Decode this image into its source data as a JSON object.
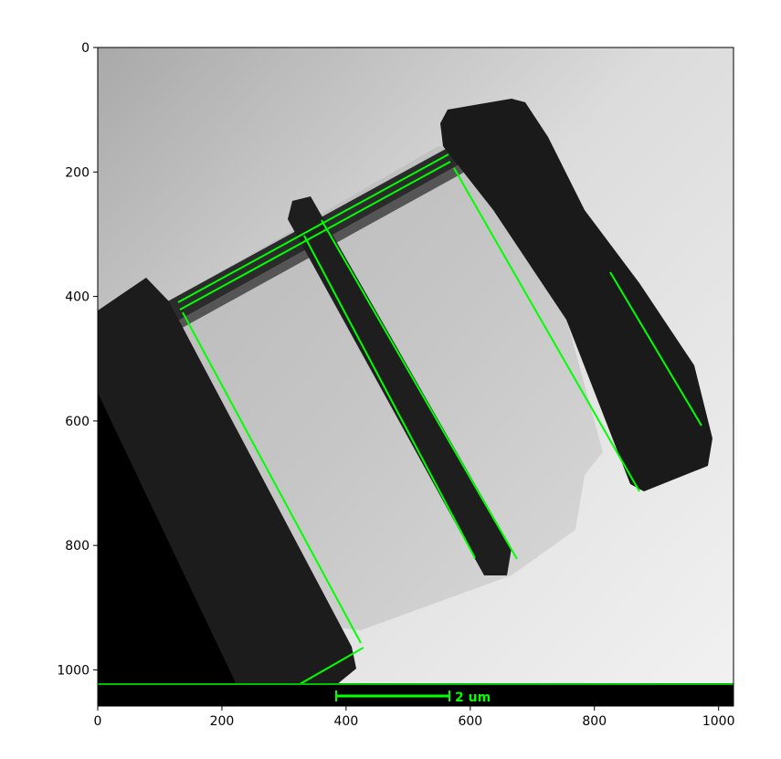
{
  "figure": {
    "x_ticks": [
      "0",
      "200",
      "400",
      "600",
      "800",
      "1000"
    ],
    "y_ticks": [
      "0",
      "200",
      "400",
      "600",
      "800",
      "1000"
    ],
    "x_range": [
      0,
      1024
    ],
    "y_range": [
      1058,
      0
    ],
    "scale_bar_label": "2 um",
    "overlay_color": "#00ff00"
  },
  "image": {
    "description_type": "grayscale electron micrograph of a tilted multilayer specimen with detected layer edges outlined in green",
    "edge_lines": [
      {
        "from": [
          128,
          410
        ],
        "to": [
          565,
          174
        ]
      },
      {
        "from": [
          140,
          424
        ],
        "to": [
          568,
          188
        ]
      },
      {
        "from": [
          140,
          425
        ],
        "to": [
          425,
          955
        ]
      },
      {
        "from": [
          335,
          284
        ],
        "to": [
          610,
          820
        ]
      },
      {
        "from": [
          363,
          260
        ],
        "to": [
          665,
          820
        ]
      },
      {
        "from": [
          498,
          195
        ],
        "to": [
          860,
          715
        ]
      },
      {
        "from": [
          838,
          360
        ],
        "to": [
          970,
          610
        ]
      },
      {
        "from": [
          428,
          962
        ],
        "to": [
          318,
          1040
        ]
      }
    ],
    "scale_bar": {
      "from": [
        385,
        1040
      ],
      "to": [
        565,
        1040
      ]
    }
  }
}
